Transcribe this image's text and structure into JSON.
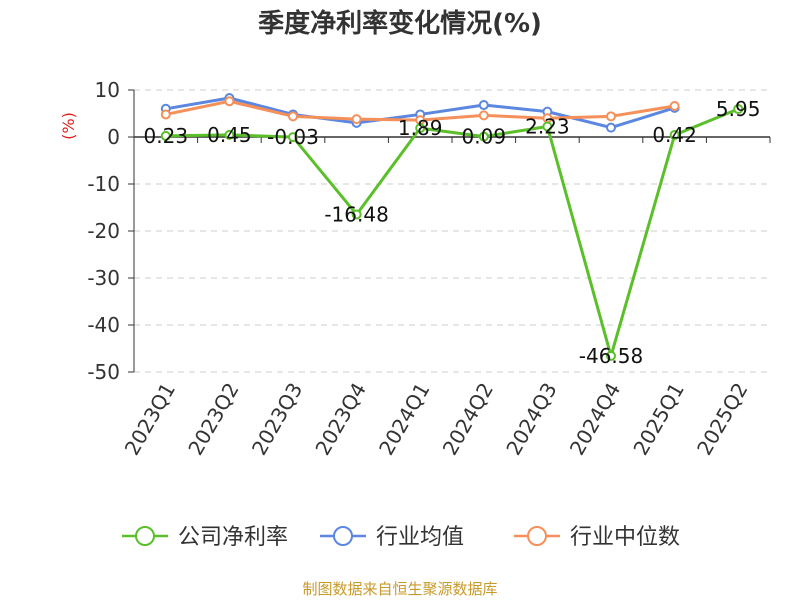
{
  "chart_data": {
    "type": "line",
    "title": "季度净利率变化情况(%)",
    "unit": "(%)",
    "categories": [
      "2023Q1",
      "2023Q2",
      "2023Q3",
      "2023Q4",
      "2024Q1",
      "2024Q2",
      "2024Q3",
      "2024Q4",
      "2025Q1",
      "2025Q2"
    ],
    "ylim": [
      -50,
      10
    ],
    "yticks": [
      10,
      0,
      -10,
      -20,
      -30,
      -40,
      -50
    ],
    "grid": true,
    "legend_position": "bottom",
    "series": [
      {
        "name": "公司净利率",
        "color": "#5bbf2a",
        "show_labels": true,
        "values": [
          0.23,
          0.45,
          -0.03,
          -16.48,
          1.89,
          0.09,
          2.23,
          -46.58,
          0.42,
          5.95
        ],
        "labels": [
          "0.23",
          "0.45",
          "-0.03",
          "-16.48",
          "1.89",
          "0.09",
          "2.23",
          "-46.58",
          "0.42",
          "5.95"
        ]
      },
      {
        "name": "行业均值",
        "color": "#5b87e0",
        "show_labels": false,
        "values": [
          6.0,
          8.3,
          4.8,
          3.0,
          4.8,
          6.8,
          5.4,
          2.0,
          6.2,
          null
        ]
      },
      {
        "name": "行业中位数",
        "color": "#f5905a",
        "show_labels": false,
        "values": [
          4.8,
          7.6,
          4.4,
          3.8,
          3.6,
          4.6,
          4.0,
          4.4,
          6.6,
          null
        ]
      }
    ]
  },
  "footer": {
    "source": "制图数据来自恒生聚源数据库",
    "source_color": "#c89a2a"
  },
  "colors": {
    "unit": "#e02020",
    "axis": "#333333",
    "grid": "#cccccc"
  }
}
